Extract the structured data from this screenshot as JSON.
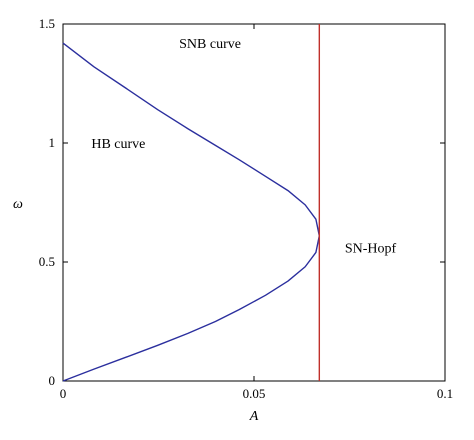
{
  "chart_data": {
    "type": "line",
    "xlabel": "A",
    "ylabel": "ω",
    "xlim": [
      0,
      0.1
    ],
    "ylim": [
      0,
      1.5
    ],
    "xticks": [
      {
        "value": 0,
        "label": "0"
      },
      {
        "value": 0.05,
        "label": "0.05"
      },
      {
        "value": 0.1,
        "label": "0.1"
      }
    ],
    "yticks": [
      {
        "value": 0,
        "label": "0"
      },
      {
        "value": 0.5,
        "label": "0.5"
      },
      {
        "value": 1,
        "label": "1"
      },
      {
        "value": 1.5,
        "label": "1.5"
      }
    ],
    "grid": false,
    "series": [
      {
        "color": "#2b2f9e",
        "x": [
          0.0,
          0.0081,
          0.0165,
          0.0248,
          0.0327,
          0.0399,
          0.0461,
          0.053,
          0.0589,
          0.0634,
          0.0662,
          0.0671,
          0.0662,
          0.0634,
          0.0589,
          0.053,
          0.0461,
          0.0399,
          0.0327,
          0.0248,
          0.0165,
          0.0081,
          0.0
        ],
        "y": [
          0.0,
          0.05,
          0.1,
          0.15,
          0.2,
          0.25,
          0.3,
          0.36,
          0.42,
          0.48,
          0.54,
          0.61,
          0.68,
          0.74,
          0.8,
          0.86,
          0.93,
          0.99,
          1.06,
          1.14,
          1.23,
          1.32,
          1.42
        ]
      },
      {
        "color": "#c0302a",
        "x": [
          0.0671,
          0.0671
        ],
        "y": [
          0,
          1.5
        ]
      }
    ],
    "annotations": [
      {
        "text": "SNB curve",
        "x": 0.0385,
        "y": 1.42
      },
      {
        "text": "HB curve",
        "x": 0.0145,
        "y": 1.0
      },
      {
        "text": "SN-Hopf",
        "x": 0.0805,
        "y": 0.56
      }
    ]
  }
}
